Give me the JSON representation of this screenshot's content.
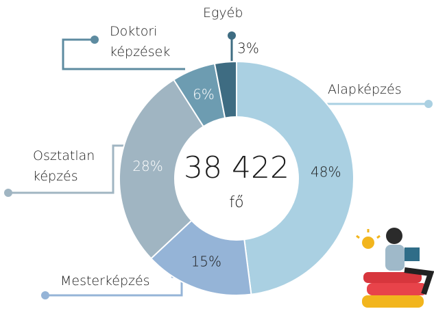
{
  "chart_data": {
    "type": "donut",
    "categories": [
      "Alapképzés",
      "Mesterképzés",
      "Osztatlan képzés",
      "Doktori képzések",
      "Egyéb"
    ],
    "values": [
      48,
      15,
      28,
      6,
      3
    ],
    "value_labels": [
      "48%",
      "15%",
      "28%",
      "6%",
      "3%"
    ],
    "colors": [
      "#aad0e2",
      "#95b4d7",
      "#a0b5c2",
      "#6d9cb1",
      "#3e6c82"
    ],
    "center_text": "38 422",
    "center_subtext": "fő"
  }
}
